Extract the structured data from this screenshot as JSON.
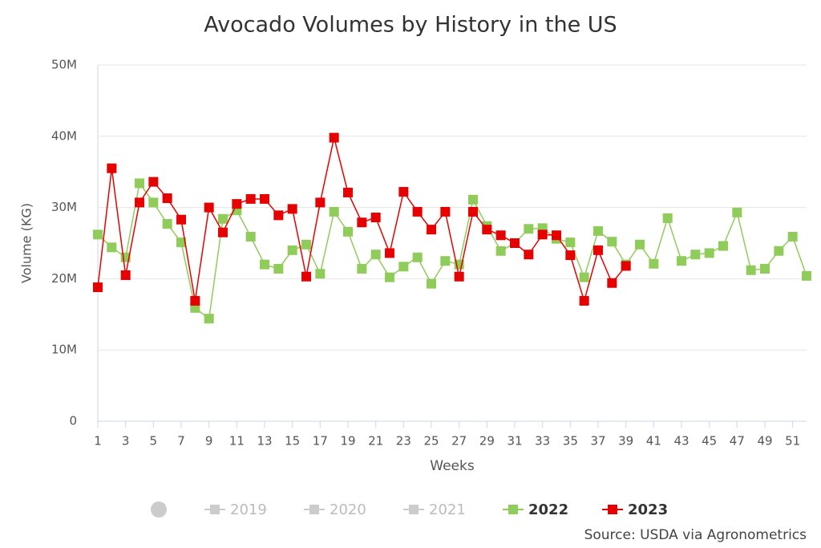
{
  "chart_data": {
    "type": "line",
    "title": "Avocado Volumes by History in the US",
    "x_label": "Weeks",
    "y_label": "Volume (KG)",
    "source": "Source: USDA via Agronometrics",
    "x": [
      1,
      2,
      3,
      4,
      5,
      6,
      7,
      8,
      9,
      10,
      11,
      12,
      13,
      14,
      15,
      16,
      17,
      18,
      19,
      20,
      21,
      22,
      23,
      24,
      25,
      26,
      27,
      28,
      29,
      30,
      31,
      32,
      33,
      34,
      35,
      36,
      37,
      38,
      39,
      40,
      41,
      42,
      43,
      44,
      45,
      46,
      47,
      48,
      49,
      50,
      51,
      52
    ],
    "xlim": [
      1,
      52
    ],
    "xticks": [
      1,
      3,
      5,
      7,
      9,
      11,
      13,
      15,
      17,
      19,
      21,
      23,
      25,
      27,
      29,
      31,
      33,
      35,
      37,
      39,
      41,
      43,
      45,
      47,
      49,
      51
    ],
    "ylim": [
      0,
      50000000
    ],
    "yticks": [
      0,
      {
        "value": 10000000,
        "label": "10M"
      },
      {
        "value": 20000000,
        "label": "20M"
      },
      {
        "value": 30000000,
        "label": "30M"
      },
      {
        "value": 40000000,
        "label": "40M"
      },
      {
        "value": 50000000,
        "label": "50M"
      }
    ],
    "grid": true,
    "inactive_legend": [
      "2019",
      "2020",
      "2021"
    ],
    "series": [
      {
        "name": "2022",
        "color": "#8fcc5a",
        "values": [
          26200000,
          24400000,
          23000000,
          33400000,
          30700000,
          27700000,
          25100000,
          15900000,
          14400000,
          28400000,
          29600000,
          25900000,
          22000000,
          21400000,
          24000000,
          24800000,
          20700000,
          29400000,
          26600000,
          21400000,
          23400000,
          20200000,
          21700000,
          23000000,
          19300000,
          22500000,
          22000000,
          31100000,
          27400000,
          23900000,
          25000000,
          27000000,
          27100000,
          25600000,
          25100000,
          20200000,
          26700000,
          25200000,
          22000000,
          24800000,
          22100000,
          28500000,
          22500000,
          23400000,
          23600000,
          24600000,
          29300000,
          21200000,
          21400000,
          23900000,
          25900000,
          20400000
        ]
      },
      {
        "name": "2023",
        "color": "#e60000",
        "values": [
          18800000,
          35500000,
          20500000,
          30700000,
          33600000,
          31300000,
          28300000,
          16900000,
          30000000,
          26500000,
          30500000,
          31200000,
          31200000,
          28900000,
          29800000,
          20300000,
          30700000,
          39800000,
          32100000,
          27900000,
          28600000,
          23600000,
          32200000,
          29400000,
          26900000,
          29400000,
          20300000,
          29400000,
          26900000,
          26100000,
          25000000,
          23400000,
          26200000,
          26100000,
          23300000,
          16900000,
          24000000,
          19400000,
          21800000,
          null,
          null,
          null,
          null,
          null,
          null,
          null,
          null,
          null,
          null,
          null,
          null,
          null
        ]
      }
    ]
  }
}
